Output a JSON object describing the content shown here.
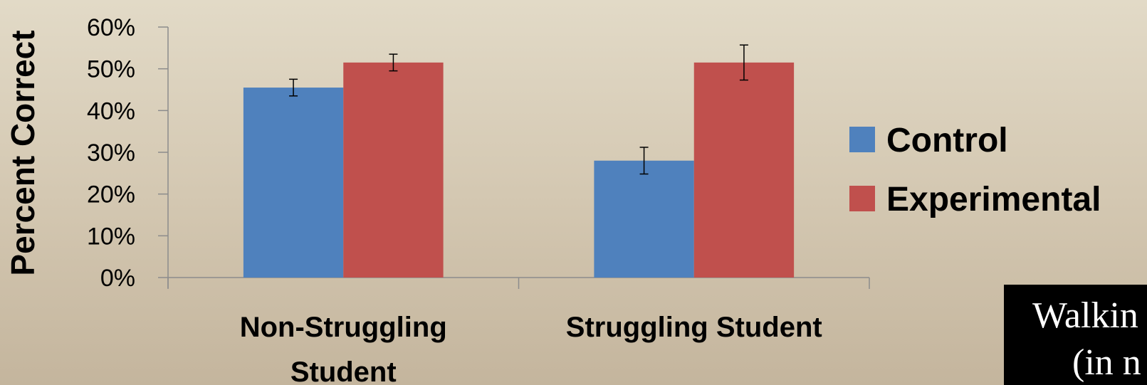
{
  "chart_data": {
    "type": "bar",
    "title": "",
    "ylabel": "Percent Correct",
    "xlabel": "",
    "ylim": [
      0,
      60
    ],
    "yticks": [
      "0%",
      "10%",
      "20%",
      "30%",
      "40%",
      "50%",
      "60%"
    ],
    "categories": [
      "Non-Struggling Student",
      "Struggling Student"
    ],
    "category_label_lines": [
      [
        "Non-Struggling",
        "Student"
      ],
      [
        "Struggling Student"
      ]
    ],
    "series": [
      {
        "name": "Control",
        "color": "#4f81bd",
        "values": [
          45.5,
          28
        ],
        "error": [
          2,
          3.2
        ]
      },
      {
        "name": "Experimental",
        "color": "#c0504d",
        "values": [
          51.5,
          51.5
        ],
        "error": [
          2,
          4.2
        ]
      }
    ],
    "legend_position": "right",
    "grid": false
  },
  "overlay": {
    "line1": "Walkin",
    "line2": "(in n"
  }
}
